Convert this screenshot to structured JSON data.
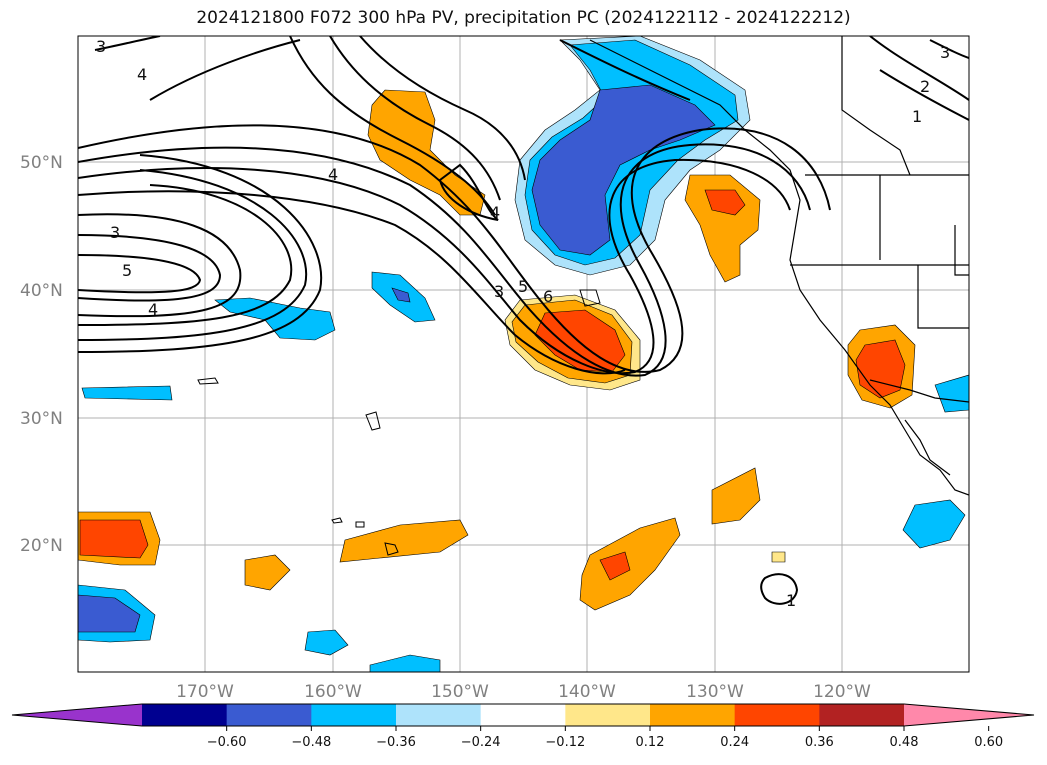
{
  "title": "2024121800 F072 300 hPa PV, precipitation PC (2024122112 - 2024122212)",
  "axes": {
    "lat_ticks": [
      "50°N",
      "40°N",
      "30°N",
      "20°N"
    ],
    "lon_ticks": [
      "170°W",
      "160°W",
      "150°W",
      "140°W",
      "130°W",
      "120°W"
    ]
  },
  "colorbar": {
    "ticks": [
      "−0.60",
      "−0.48",
      "−0.36",
      "−0.24",
      "−0.12",
      "0.12",
      "0.24",
      "0.36",
      "0.48",
      "0.60"
    ],
    "colors": [
      "#9933cc",
      "#000090",
      "#3a5bd1",
      "#00bfff",
      "#aee3fb",
      "#ffffff",
      "#ffe78a",
      "#ffa500",
      "#ff4500",
      "#b22222",
      "#ff88aa"
    ]
  },
  "pv_contour_labels": [
    "3",
    "4",
    "4",
    "3",
    "5",
    "4",
    "4",
    "3",
    "5",
    "6",
    "1",
    "2",
    "3",
    "1"
  ]
}
